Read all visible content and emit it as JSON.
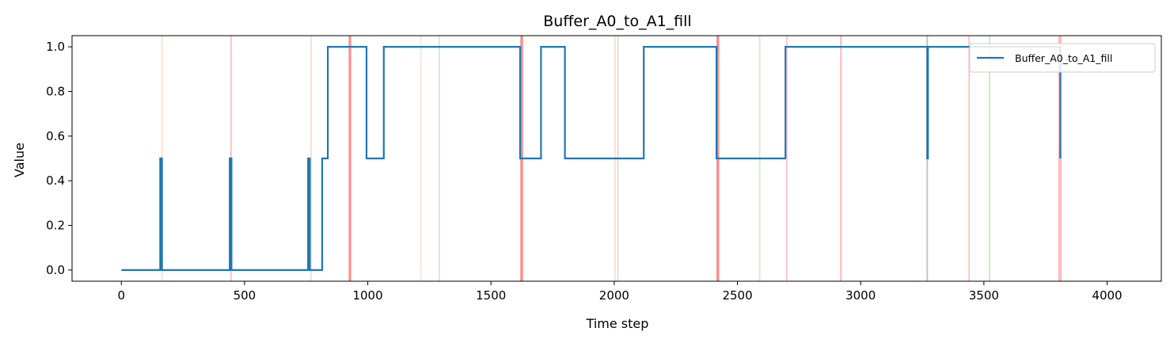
{
  "chart_data": {
    "type": "line",
    "title": "Buffer_A0_to_A1_fill",
    "xlabel": "Time step",
    "ylabel": "Value",
    "xlim": [
      -200,
      4220
    ],
    "ylim": [
      -0.05,
      1.05
    ],
    "xticks": [
      0,
      500,
      1000,
      1500,
      2000,
      2500,
      3000,
      3500,
      4000
    ],
    "yticks": [
      0.0,
      0.2,
      0.4,
      0.6,
      0.8,
      1.0
    ],
    "xtick_labels": [
      "0",
      "500",
      "1000",
      "1500",
      "2000",
      "2500",
      "3000",
      "3500",
      "4000"
    ],
    "ytick_labels": [
      "0.0",
      "0.2",
      "0.4",
      "0.6",
      "0.8",
      "1.0"
    ],
    "grid": false,
    "legend": {
      "position": "top-right",
      "entries": [
        "Buffer_A0_to_A1_fill"
      ]
    },
    "series": [
      {
        "name": "Buffer_A0_to_A1_fill",
        "color": "#1f77b4",
        "step": true,
        "points": [
          [
            0,
            0
          ],
          [
            158,
            0
          ],
          [
            158,
            0.5
          ],
          [
            165,
            0.5
          ],
          [
            165,
            0
          ],
          [
            440,
            0
          ],
          [
            440,
            0.5
          ],
          [
            447,
            0.5
          ],
          [
            447,
            0
          ],
          [
            758,
            0
          ],
          [
            758,
            0.5
          ],
          [
            765,
            0.5
          ],
          [
            765,
            0
          ],
          [
            815,
            0
          ],
          [
            815,
            0.5
          ],
          [
            838,
            0.5
          ],
          [
            838,
            1.0
          ],
          [
            995,
            1.0
          ],
          [
            995,
            0.5
          ],
          [
            1065,
            0.5
          ],
          [
            1065,
            1.0
          ],
          [
            1618,
            1.0
          ],
          [
            1618,
            0.5
          ],
          [
            1703,
            0.5
          ],
          [
            1703,
            1.0
          ],
          [
            1800,
            1.0
          ],
          [
            1800,
            0.5
          ],
          [
            2120,
            0.5
          ],
          [
            2120,
            1.0
          ],
          [
            2415,
            1.0
          ],
          [
            2415,
            0.5
          ],
          [
            2695,
            0.5
          ],
          [
            2695,
            1.0
          ],
          [
            3270,
            1.0
          ],
          [
            3270,
            0.5
          ],
          [
            3273,
            0.5
          ],
          [
            3273,
            1.0
          ],
          [
            3810,
            1.0
          ],
          [
            3810,
            0.5
          ]
        ]
      }
    ],
    "event_lines": [
      {
        "x": 165,
        "color": "#f4a582",
        "opacity": 0.35
      },
      {
        "x": 445,
        "color": "#ff4d4d",
        "opacity": 0.35
      },
      {
        "x": 770,
        "color": "#f4a582",
        "opacity": 0.35
      },
      {
        "x": 925,
        "color": "#ff4d4d",
        "opacity": 0.55
      },
      {
        "x": 930,
        "color": "#ff4d4d",
        "opacity": 0.55
      },
      {
        "x": 1215,
        "color": "#f4a582",
        "opacity": 0.3
      },
      {
        "x": 1290,
        "color": "#9ccc85",
        "opacity": 0.4
      },
      {
        "x": 1622,
        "color": "#ff4d4d",
        "opacity": 0.6
      },
      {
        "x": 1627,
        "color": "#ff4d4d",
        "opacity": 0.6
      },
      {
        "x": 2003,
        "color": "#f4a582",
        "opacity": 0.35
      },
      {
        "x": 2015,
        "color": "#b5b07f",
        "opacity": 0.4
      },
      {
        "x": 2418,
        "color": "#ff4d4d",
        "opacity": 0.6
      },
      {
        "x": 2423,
        "color": "#ff4d4d",
        "opacity": 0.6
      },
      {
        "x": 2590,
        "color": "#9ccc85",
        "opacity": 0.4
      },
      {
        "x": 2700,
        "color": "#ff4d4d",
        "opacity": 0.3
      },
      {
        "x": 2920,
        "color": "#ff4d4d",
        "opacity": 0.4
      },
      {
        "x": 3270,
        "color": "#8b7d4f",
        "opacity": 0.45
      },
      {
        "x": 3440,
        "color": "#ff4d4d",
        "opacity": 0.3
      },
      {
        "x": 3523,
        "color": "#9ccc85",
        "opacity": 0.45
      },
      {
        "x": 3805,
        "color": "#ff4d4d",
        "opacity": 0.4
      },
      {
        "x": 3812,
        "color": "#ff4d4d",
        "opacity": 0.4
      }
    ]
  }
}
